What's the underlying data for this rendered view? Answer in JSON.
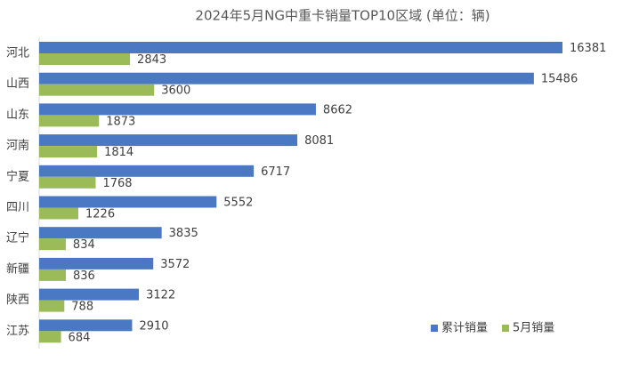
{
  "chart_data": {
    "type": "hbar",
    "title": "2024年5月NG中重卡销量TOP10区域      (单位：辆)",
    "categories": [
      "河北",
      "山西",
      "山东",
      "河南",
      "宁夏",
      "四川",
      "辽宁",
      "新疆",
      "陕西",
      "江苏"
    ],
    "series": [
      {
        "name": "累计销量",
        "color": "#4a78c2",
        "values": [
          16381,
          15486,
          8662,
          8081,
          6717,
          5552,
          3835,
          3572,
          3122,
          2910
        ]
      },
      {
        "name": "5月销量",
        "color": "#9bbb59",
        "values": [
          2843,
          3600,
          1873,
          1814,
          1768,
          1226,
          834,
          836,
          788,
          684
        ]
      }
    ],
    "legend": "bottom-right"
  }
}
